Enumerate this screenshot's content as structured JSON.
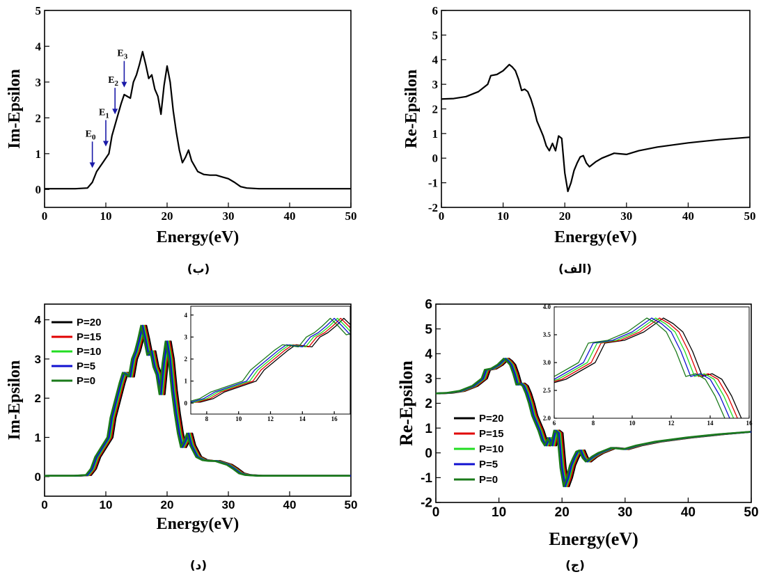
{
  "chart_data": [
    {
      "id": "top-left",
      "type": "line",
      "caption": "(ب)",
      "xlabel": "Energy(eV)",
      "ylabel": "Im-Epsilon",
      "xlim": [
        0,
        50
      ],
      "ylim": [
        -0.5,
        5
      ],
      "xticks": [
        "0",
        "10",
        "20",
        "30",
        "40",
        "50"
      ],
      "yticks": [
        "0",
        "1",
        "2",
        "3",
        "4",
        "5"
      ],
      "series": [
        {
          "color": "#000000",
          "x": [
            0,
            5,
            7,
            7.8,
            8.5,
            9.5,
            10.5,
            11,
            11.5,
            12,
            12.5,
            13,
            13.5,
            14,
            14.5,
            15,
            15.5,
            16,
            16.5,
            17,
            17.5,
            18,
            18.5,
            19,
            19.5,
            20,
            20.5,
            21,
            21.5,
            22,
            22.5,
            23,
            23.5,
            24,
            25,
            26,
            27,
            28,
            29,
            30,
            31,
            32,
            33,
            35,
            40,
            50
          ],
          "y": [
            0.02,
            0.02,
            0.04,
            0.2,
            0.5,
            0.75,
            1.0,
            1.5,
            1.8,
            2.1,
            2.4,
            2.65,
            2.6,
            2.55,
            3.0,
            3.2,
            3.5,
            3.85,
            3.5,
            3.1,
            3.2,
            2.8,
            2.6,
            2.1,
            2.9,
            3.45,
            3.0,
            2.2,
            1.6,
            1.1,
            0.75,
            0.9,
            1.1,
            0.8,
            0.5,
            0.42,
            0.4,
            0.4,
            0.35,
            0.3,
            0.2,
            0.08,
            0.04,
            0.02,
            0.02,
            0.02
          ]
        }
      ],
      "annotations": [
        {
          "label": "E",
          "sub": "0",
          "x": 7.8,
          "y": 0.6
        },
        {
          "label": "E",
          "sub": "1",
          "x": 10.0,
          "y": 1.2
        },
        {
          "label": "E",
          "sub": "2",
          "x": 11.5,
          "y": 2.1
        },
        {
          "label": "E",
          "sub": "3",
          "x": 13.0,
          "y": 2.85
        }
      ],
      "arrow_color": "#1a1aa8"
    },
    {
      "id": "top-right",
      "type": "line",
      "caption": "(الف)",
      "xlabel": "Energy(eV)",
      "ylabel": "Re-Epsilon",
      "xlim": [
        0,
        50
      ],
      "ylim": [
        -2,
        6
      ],
      "xticks": [
        "0",
        "10",
        "20",
        "30",
        "40",
        "50"
      ],
      "yticks": [
        "-2",
        "-1",
        "0",
        "1",
        "2",
        "3",
        "4",
        "5",
        "6"
      ],
      "series": [
        {
          "color": "#000000",
          "x": [
            0,
            2,
            4,
            6,
            7.5,
            8,
            9,
            10,
            11,
            11.5,
            12,
            12.5,
            13,
            13.5,
            14,
            14.5,
            15,
            15.5,
            16,
            16.5,
            17,
            17.5,
            18,
            18.5,
            19,
            19.5,
            20,
            20.5,
            21,
            21.5,
            22,
            22.5,
            23,
            23.5,
            24,
            25,
            26,
            28,
            30,
            32,
            35,
            40,
            45,
            50
          ],
          "y": [
            2.4,
            2.42,
            2.5,
            2.7,
            3.0,
            3.35,
            3.4,
            3.55,
            3.8,
            3.7,
            3.55,
            3.2,
            2.75,
            2.8,
            2.7,
            2.4,
            2.0,
            1.5,
            1.2,
            0.9,
            0.5,
            0.3,
            0.6,
            0.3,
            0.9,
            0.8,
            -0.6,
            -1.35,
            -1.0,
            -0.5,
            -0.2,
            0.05,
            0.1,
            -0.2,
            -0.35,
            -0.15,
            0.0,
            0.2,
            0.15,
            0.3,
            0.45,
            0.62,
            0.75,
            0.85
          ]
        }
      ]
    },
    {
      "id": "bottom-left",
      "type": "line",
      "caption": "(د)",
      "xlabel": "Energy(eV)",
      "ylabel": "Im-Epsilon",
      "xlim": [
        0,
        50
      ],
      "ylim": [
        -0.5,
        4.4
      ],
      "xticks": [
        "0",
        "10",
        "20",
        "30",
        "40",
        "50"
      ],
      "yticks": [
        "0",
        "1",
        "2",
        "3",
        "4"
      ],
      "legend": [
        "P=20",
        "P=15",
        "P=10",
        "P=5",
        "P=0"
      ],
      "series": [
        {
          "name": "P=20",
          "color": "#000000",
          "shift": 0.6
        },
        {
          "name": "P=15",
          "color": "#e00000",
          "shift": 0.4
        },
        {
          "name": "P=10",
          "color": "#22dd22",
          "shift": 0.2
        },
        {
          "name": "P=5",
          "color": "#1010d0",
          "shift": 0.0
        },
        {
          "name": "P=0",
          "color": "#1a7a1a",
          "shift": -0.25
        }
      ],
      "base_x": [
        0,
        5,
        7,
        7.8,
        8.5,
        9.5,
        10.5,
        11,
        11.5,
        12,
        12.5,
        13,
        13.5,
        14,
        14.5,
        15,
        15.5,
        16,
        16.5,
        17,
        17.5,
        18,
        18.5,
        19,
        19.5,
        20,
        20.5,
        21,
        21.5,
        22,
        22.5,
        23,
        23.5,
        24,
        25,
        26,
        27,
        28,
        29,
        30,
        31,
        32,
        33,
        35,
        40,
        50
      ],
      "base_y": [
        0.02,
        0.02,
        0.04,
        0.2,
        0.5,
        0.75,
        1.0,
        1.5,
        1.8,
        2.1,
        2.4,
        2.65,
        2.6,
        2.55,
        3.0,
        3.2,
        3.5,
        3.85,
        3.5,
        3.1,
        3.2,
        2.8,
        2.6,
        2.1,
        2.9,
        3.45,
        3.0,
        2.2,
        1.6,
        1.1,
        0.75,
        0.9,
        1.1,
        0.8,
        0.5,
        0.42,
        0.4,
        0.4,
        0.35,
        0.3,
        0.2,
        0.08,
        0.04,
        0.02,
        0.02,
        0.02
      ],
      "inset": {
        "xlim": [
          7,
          17
        ],
        "ylim": [
          -0.5,
          4.4
        ],
        "xticks": [
          "8",
          "10",
          "12",
          "14",
          "16"
        ],
        "yticks": [
          "0",
          "1",
          "2",
          "3",
          "4"
        ]
      }
    },
    {
      "id": "bottom-right",
      "type": "line",
      "caption": "(ج)",
      "xlabel": "Energy(eV)",
      "ylabel": "Re-Epsilon",
      "xlim": [
        0,
        50
      ],
      "ylim": [
        -2,
        6
      ],
      "xticks": [
        "0",
        "10",
        "20",
        "30",
        "40",
        "50"
      ],
      "yticks": [
        "-2",
        "-1",
        "0",
        "1",
        "2",
        "3",
        "4",
        "5",
        "6"
      ],
      "legend": [
        "P=20",
        "P=15",
        "P=10",
        "P=5",
        "P=0"
      ],
      "series": [
        {
          "name": "P=20",
          "color": "#000000",
          "shift": 0.6
        },
        {
          "name": "P=15",
          "color": "#e00000",
          "shift": 0.4
        },
        {
          "name": "P=10",
          "color": "#22dd22",
          "shift": 0.2
        },
        {
          "name": "P=5",
          "color": "#1010d0",
          "shift": 0.0
        },
        {
          "name": "P=0",
          "color": "#1a7a1a",
          "shift": -0.25
        }
      ],
      "base_x": [
        0,
        2,
        4,
        6,
        7.5,
        8,
        9,
        10,
        11,
        11.5,
        12,
        12.5,
        13,
        13.5,
        14,
        14.5,
        15,
        15.5,
        16,
        16.5,
        17,
        17.5,
        18,
        18.5,
        19,
        19.5,
        20,
        20.5,
        21,
        21.5,
        22,
        22.5,
        23,
        23.5,
        24,
        25,
        26,
        28,
        30,
        32,
        35,
        40,
        45,
        50
      ],
      "base_y": [
        2.4,
        2.42,
        2.5,
        2.7,
        3.0,
        3.35,
        3.4,
        3.55,
        3.8,
        3.7,
        3.55,
        3.2,
        2.75,
        2.8,
        2.7,
        2.4,
        2.0,
        1.5,
        1.2,
        0.9,
        0.5,
        0.3,
        0.6,
        0.3,
        0.9,
        0.8,
        -0.6,
        -1.35,
        -1.0,
        -0.5,
        -0.2,
        0.05,
        0.1,
        -0.2,
        -0.35,
        -0.15,
        0.0,
        0.2,
        0.15,
        0.3,
        0.45,
        0.62,
        0.75,
        0.85
      ],
      "inset": {
        "xlim": [
          6,
          16
        ],
        "ylim": [
          2.0,
          4.0
        ],
        "xticks": [
          "6",
          "8",
          "10",
          "12",
          "14",
          "16"
        ],
        "yticks": [
          "2.0",
          "2.5",
          "3.0",
          "3.5",
          "4.0"
        ]
      }
    }
  ]
}
